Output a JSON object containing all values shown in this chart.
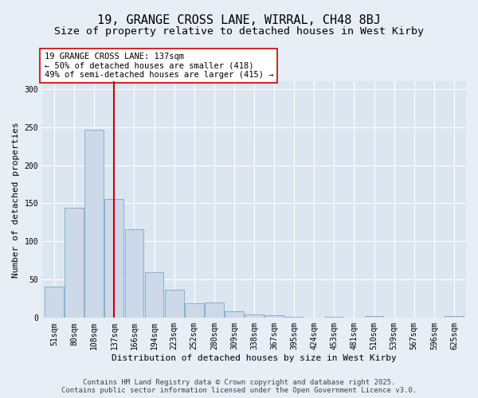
{
  "title1": "19, GRANGE CROSS LANE, WIRRAL, CH48 8BJ",
  "title2": "Size of property relative to detached houses in West Kirby",
  "xlabel": "Distribution of detached houses by size in West Kirby",
  "ylabel": "Number of detached properties",
  "categories": [
    "51sqm",
    "80sqm",
    "108sqm",
    "137sqm",
    "166sqm",
    "194sqm",
    "223sqm",
    "252sqm",
    "280sqm",
    "309sqm",
    "338sqm",
    "367sqm",
    "395sqm",
    "424sqm",
    "453sqm",
    "481sqm",
    "510sqm",
    "539sqm",
    "567sqm",
    "596sqm",
    "625sqm"
  ],
  "values": [
    41,
    144,
    246,
    156,
    116,
    60,
    37,
    19,
    20,
    9,
    5,
    3,
    1,
    0,
    1,
    0,
    2,
    0,
    0,
    0,
    2
  ],
  "bar_color": "#ccd9e8",
  "bar_edge_color": "#8ab0cc",
  "vline_x": 3,
  "vline_color": "#cc0000",
  "annotation_text": "19 GRANGE CROSS LANE: 137sqm\n← 50% of detached houses are smaller (418)\n49% of semi-detached houses are larger (415) →",
  "annotation_box_color": "#ffffff",
  "annotation_box_edge_color": "#cc0000",
  "ylim": [
    0,
    310
  ],
  "yticks": [
    0,
    50,
    100,
    150,
    200,
    250,
    300
  ],
  "background_color": "#e8eef5",
  "plot_background_color": "#dce6f0",
  "footer": "Contains HM Land Registry data © Crown copyright and database right 2025.\nContains public sector information licensed under the Open Government Licence v3.0.",
  "title1_fontsize": 11,
  "title2_fontsize": 9.5,
  "xlabel_fontsize": 8,
  "ylabel_fontsize": 8,
  "tick_fontsize": 7,
  "annotation_fontsize": 7.5,
  "footer_fontsize": 6.5
}
